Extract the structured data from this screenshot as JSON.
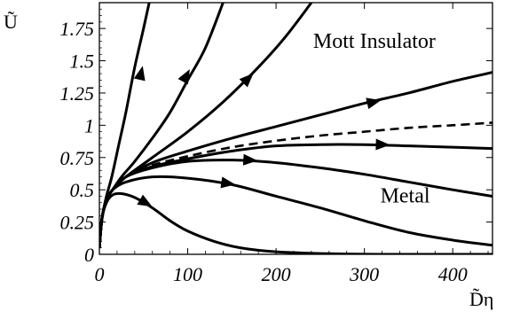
{
  "chart_data": {
    "type": "line",
    "xlabel": "D̃η",
    "ylabel": "Ũ",
    "xlim": [
      0,
      445
    ],
    "ylim": [
      0,
      1.95
    ],
    "xticks": [
      0,
      100,
      200,
      300,
      400
    ],
    "xtick_labels": [
      "0",
      "100",
      "200",
      "300",
      "400"
    ],
    "yticks": [
      0,
      0.25,
      0.5,
      0.75,
      1,
      1.25,
      1.5,
      1.75
    ],
    "ytick_labels": [
      "0",
      "0.25",
      "0.5",
      "0.75",
      "1",
      "1.25",
      "1.5",
      "1.75"
    ],
    "grid": false,
    "annotations": [
      {
        "text": "Mott Insulator",
        "x": 242,
        "y": 1.6
      },
      {
        "text": "Metal",
        "x": 318,
        "y": 0.4
      }
    ],
    "series": [
      {
        "style": "solid",
        "x": [
          0,
          3,
          8,
          14,
          22,
          30,
          40,
          50,
          58,
          65
        ],
        "y": [
          0.05,
          0.28,
          0.45,
          0.6,
          0.85,
          1.1,
          1.45,
          1.75,
          2.0,
          2.2
        ],
        "arrow_at": [
          47,
          1.4
        ]
      },
      {
        "style": "solid",
        "x": [
          0,
          3,
          8,
          15,
          25,
          40,
          60,
          80,
          100,
          120,
          140
        ],
        "y": [
          0.05,
          0.28,
          0.42,
          0.5,
          0.6,
          0.72,
          0.9,
          1.1,
          1.35,
          1.6,
          1.95
        ],
        "arrow_at": [
          98,
          1.38
        ]
      },
      {
        "style": "solid",
        "x": [
          0,
          3,
          8,
          15,
          30,
          60,
          100,
          140,
          180,
          210,
          240
        ],
        "y": [
          0.05,
          0.28,
          0.42,
          0.5,
          0.6,
          0.75,
          0.95,
          1.18,
          1.45,
          1.68,
          1.95
        ],
        "arrow_at": [
          168,
          1.36
        ]
      },
      {
        "style": "solid",
        "x": [
          0,
          3,
          8,
          15,
          30,
          60,
          100,
          150,
          200,
          250,
          300,
          350,
          400,
          445
        ],
        "y": [
          0.05,
          0.28,
          0.42,
          0.5,
          0.6,
          0.71,
          0.8,
          0.9,
          0.99,
          1.08,
          1.17,
          1.25,
          1.34,
          1.41
        ],
        "arrow_at": [
          310,
          1.18
        ]
      },
      {
        "style": "dashed",
        "x": [
          30,
          60,
          100,
          150,
          200,
          250,
          300,
          350,
          400,
          445
        ],
        "y": [
          0.6,
          0.69,
          0.76,
          0.83,
          0.88,
          0.92,
          0.95,
          0.98,
          1.0,
          1.02
        ]
      },
      {
        "style": "solid",
        "x": [
          0,
          3,
          8,
          15,
          30,
          60,
          100,
          150,
          200,
          250,
          300,
          350,
          400,
          445
        ],
        "y": [
          0.05,
          0.28,
          0.42,
          0.5,
          0.6,
          0.68,
          0.74,
          0.8,
          0.84,
          0.85,
          0.85,
          0.84,
          0.83,
          0.82
        ],
        "arrow_at": [
          320,
          0.85
        ]
      },
      {
        "style": "solid",
        "x": [
          0,
          3,
          8,
          15,
          30,
          60,
          100,
          150,
          200,
          250,
          300,
          350,
          400,
          445
        ],
        "y": [
          0.05,
          0.28,
          0.42,
          0.5,
          0.6,
          0.67,
          0.72,
          0.73,
          0.71,
          0.67,
          0.62,
          0.56,
          0.5,
          0.45
        ],
        "arrow_at": [
          170,
          0.73
        ]
      },
      {
        "style": "solid",
        "x": [
          0,
          3,
          8,
          15,
          30,
          60,
          100,
          150,
          200,
          250,
          300,
          350,
          400,
          445
        ],
        "y": [
          0.05,
          0.28,
          0.42,
          0.5,
          0.56,
          0.6,
          0.59,
          0.54,
          0.45,
          0.36,
          0.26,
          0.17,
          0.11,
          0.07
        ],
        "arrow_at": [
          145,
          0.55
        ]
      },
      {
        "style": "solid",
        "x": [
          0,
          3,
          8,
          15,
          25,
          40,
          60,
          80,
          100,
          130,
          160,
          200,
          260,
          330,
          400,
          445
        ],
        "y": [
          0.05,
          0.28,
          0.4,
          0.46,
          0.47,
          0.44,
          0.36,
          0.26,
          0.18,
          0.1,
          0.05,
          0.02,
          0.005,
          0.0,
          0.0,
          0.0
        ],
        "arrow_at": [
          52,
          0.4
        ]
      }
    ]
  }
}
